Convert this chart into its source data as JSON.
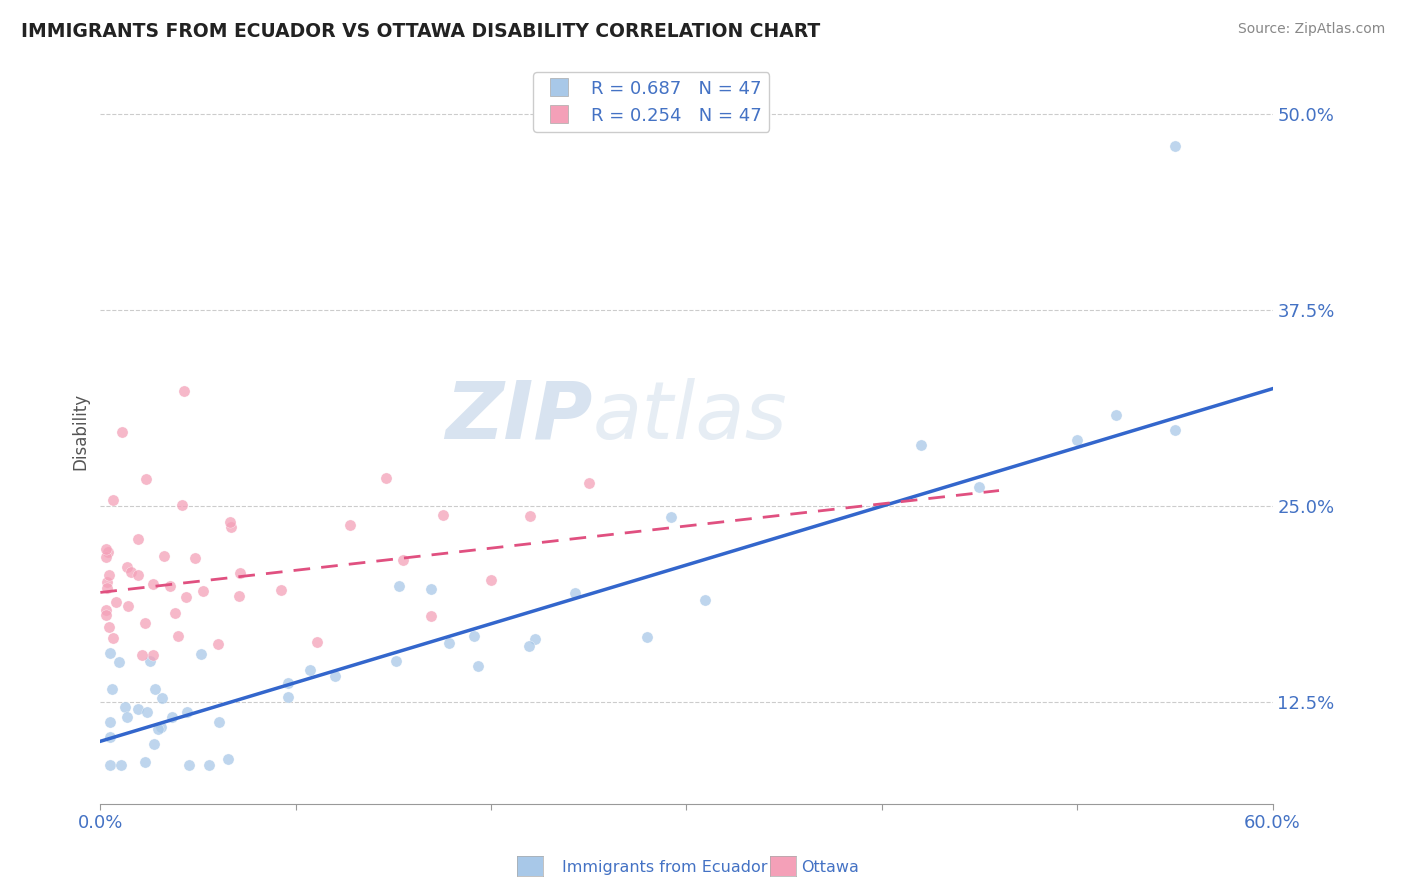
{
  "title": "IMMIGRANTS FROM ECUADOR VS OTTAWA DISABILITY CORRELATION CHART",
  "source": "Source: ZipAtlas.com",
  "ylabel": "Disability",
  "xlim": [
    0.0,
    0.6
  ],
  "ylim": [
    0.06,
    0.535
  ],
  "yticks": [
    0.125,
    0.25,
    0.375,
    0.5
  ],
  "ytick_labels": [
    "12.5%",
    "25.0%",
    "37.5%",
    "50.0%"
  ],
  "xticks": [
    0.0,
    0.1,
    0.2,
    0.3,
    0.4,
    0.5,
    0.6
  ],
  "xtick_labels_left": [
    "0.0%"
  ],
  "xtick_labels_right": [
    "60.0%"
  ],
  "legend_r1": "R = 0.687   N = 47",
  "legend_r2": "R = 0.254   N = 47",
  "color_blue": "#a8c8e8",
  "color_pink": "#f4a0b8",
  "color_blue_line": "#3366cc",
  "color_pink_line": "#e05080",
  "color_text_blue": "#4472c4",
  "color_grid": "#cccccc",
  "watermark_zip": "ZIP",
  "watermark_atlas": "atlas",
  "blue_line_x0": 0.0,
  "blue_line_y0": 0.1,
  "blue_line_x1": 0.6,
  "blue_line_y1": 0.325,
  "pink_line_x0": 0.0,
  "pink_line_x1": 0.46,
  "pink_line_y0": 0.195,
  "pink_line_y1": 0.26,
  "bottom_legend_label1": "Immigrants from Ecuador",
  "bottom_legend_label2": "Ottawa"
}
